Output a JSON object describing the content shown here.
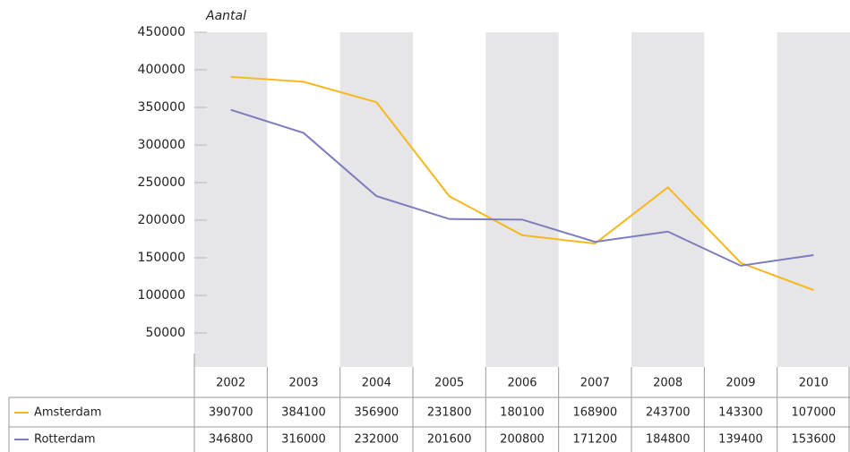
{
  "chart_data": {
    "type": "line",
    "y_label": "Aantal",
    "categories": [
      "2002",
      "2003",
      "2004",
      "2005",
      "2006",
      "2007",
      "2008",
      "2009",
      "2010"
    ],
    "series": [
      {
        "name": "Amsterdam",
        "color": "#f7b71d",
        "values": [
          390700,
          384100,
          356900,
          231800,
          180100,
          168900,
          243700,
          143300,
          107000
        ]
      },
      {
        "name": "Rotterdam",
        "color": "#7d7dbd",
        "values": [
          346800,
          316000,
          232000,
          201600,
          200800,
          171200,
          184800,
          139400,
          153600
        ]
      }
    ],
    "ylim": [
      0,
      450000
    ],
    "yticks": [
      50000,
      100000,
      150000,
      200000,
      250000,
      300000,
      350000,
      400000,
      450000
    ]
  }
}
